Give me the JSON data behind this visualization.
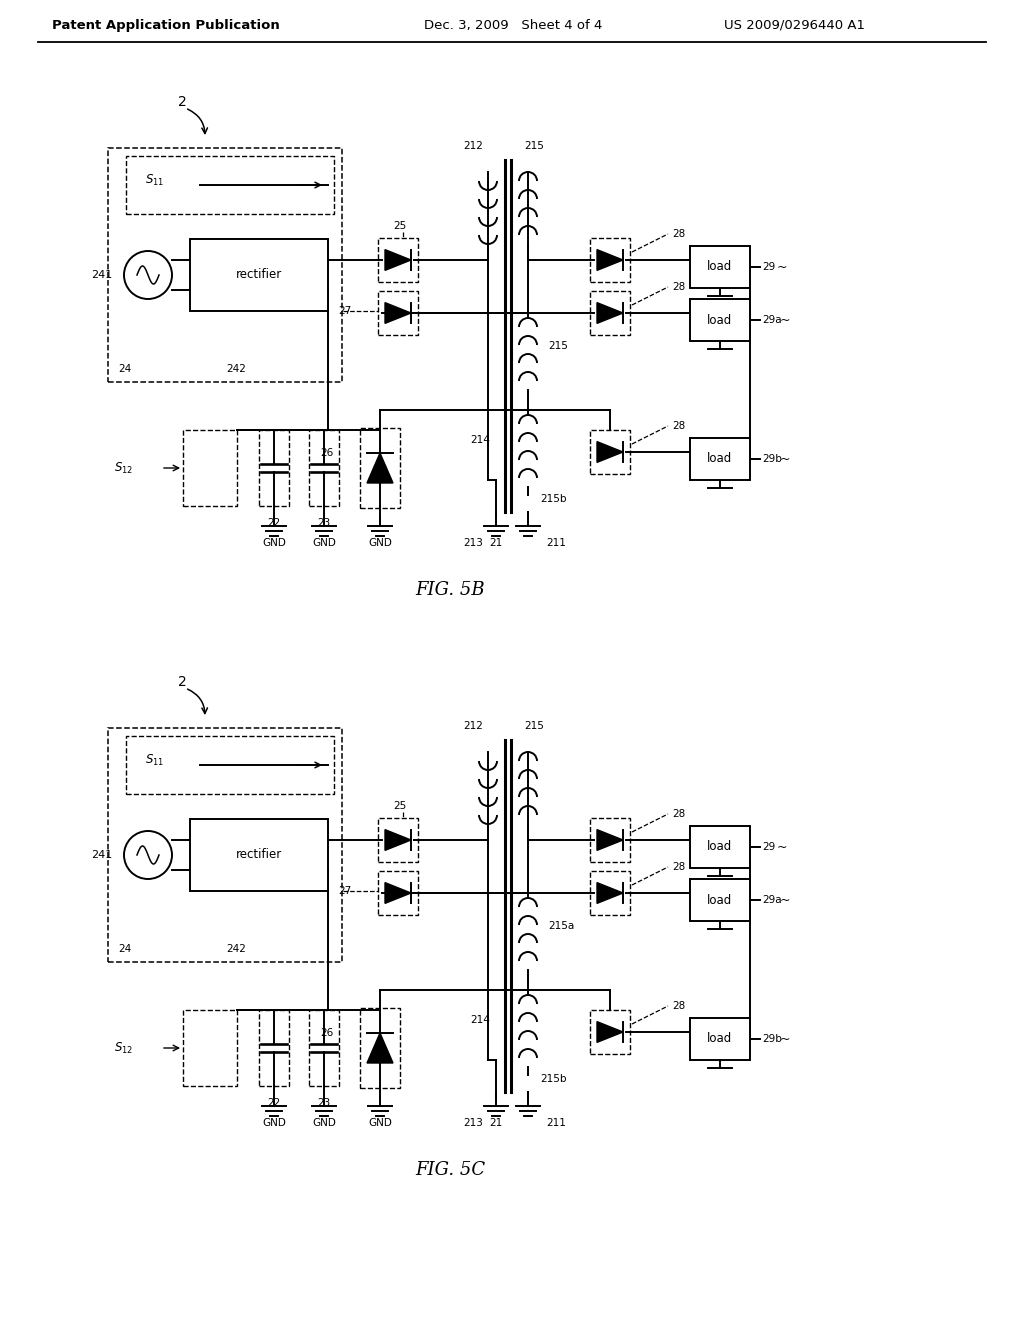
{
  "header_left": "Patent Application Publication",
  "header_mid": "Dec. 3, 2009   Sheet 4 of 4",
  "header_right": "US 2009/0296440 A1",
  "fig5b": "FIG. 5B",
  "fig5c": "FIG. 5C",
  "bg": "#ffffff",
  "fg": "#000000"
}
